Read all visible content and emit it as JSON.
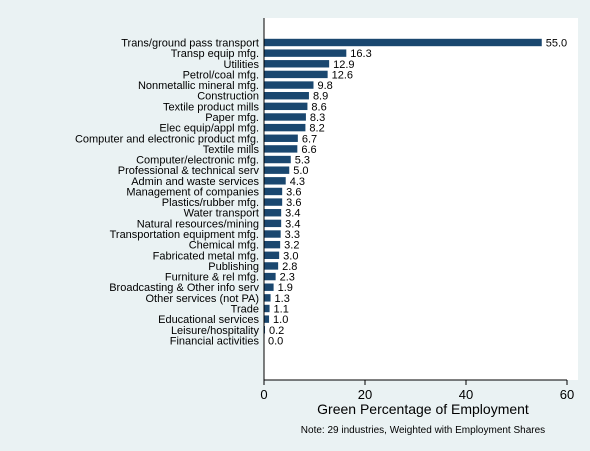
{
  "chart_data": {
    "type": "bar",
    "orientation": "horizontal",
    "categories": [
      "Trans/ground pass transport",
      "Transp equip mfg.",
      "Utilities",
      "Petrol/coal mfg.",
      "Nonmetallic mineral mfg.",
      "Construction",
      "Textile product mills",
      "Paper mfg.",
      "Elec equip/appl mfg.",
      "Computer and electronic product mfg.",
      "Textile mills",
      "Computer/electronic mfg.",
      "Professional & technical serv",
      "Admin and waste services",
      "Management of companies",
      "Plastics/rubber mfg.",
      "Water transport",
      "Natural resources/mining",
      "Transportation equipment mfg.",
      "Chemical mfg.",
      "Fabricated metal mfg.",
      "Publishing",
      "Furniture & rel mfg.",
      "Broadcasting & Other info serv",
      "Other services (not PA)",
      "Trade",
      "Educational services",
      "Leisure/hospitality",
      "Financial activities"
    ],
    "values": [
      55.0,
      16.3,
      12.9,
      12.6,
      9.8,
      8.9,
      8.6,
      8.3,
      8.2,
      6.7,
      6.6,
      5.3,
      5.0,
      4.3,
      3.6,
      3.6,
      3.4,
      3.4,
      3.3,
      3.2,
      3.0,
      2.8,
      2.3,
      1.9,
      1.3,
      1.1,
      1.0,
      0.2,
      0.0
    ],
    "value_labels": [
      "55.0",
      "16.3",
      "12.9",
      "12.6",
      "9.8",
      "8.9",
      "8.6",
      "8.3",
      "8.2",
      "6.7",
      "6.6",
      "5.3",
      "5.0",
      "4.3",
      "3.6",
      "3.6",
      "3.4",
      "3.4",
      "3.3",
      "3.2",
      "3.0",
      "2.8",
      "2.3",
      "1.9",
      "1.3",
      "1.1",
      "1.0",
      "0.2",
      "0.0"
    ],
    "xlabel": "Green Percentage of Employment",
    "xlim": [
      0,
      60
    ],
    "xticks": [
      0,
      20,
      40,
      60
    ],
    "xtick_labels": [
      "0",
      "20",
      "40",
      "60"
    ],
    "note": "Note: 29 industries, Weighted with Employment Shares",
    "grid": false,
    "legend": "none",
    "colors": {
      "bar": "#1a476f",
      "background": "#eaf2f3",
      "plot_background": "#ffffff",
      "axis": "#000000"
    }
  }
}
